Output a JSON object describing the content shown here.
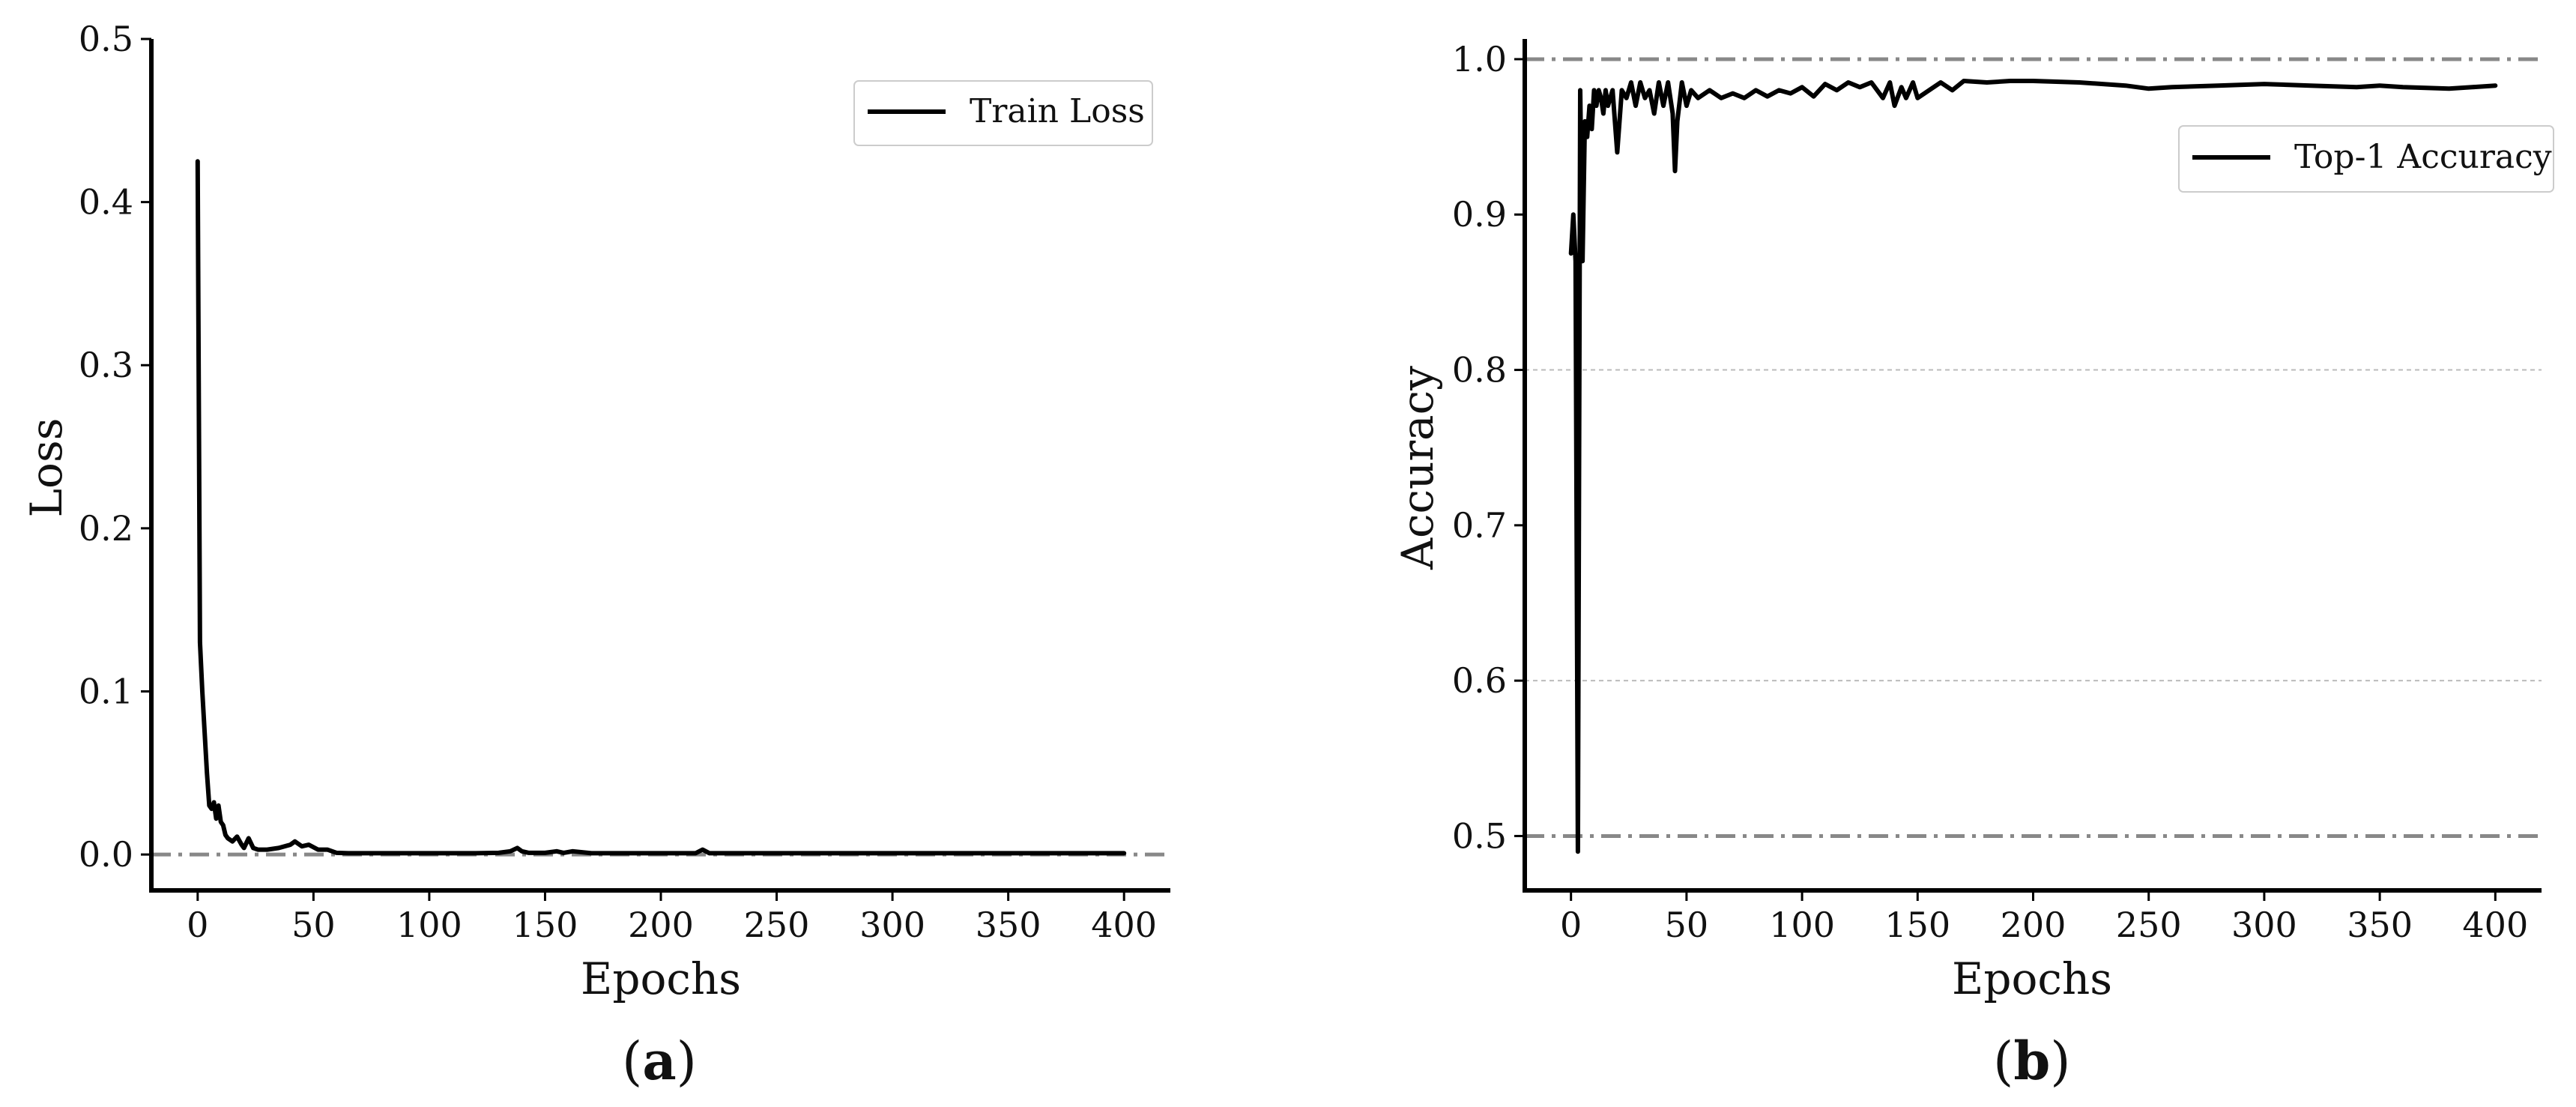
{
  "chart_data": [
    {
      "panel_label": {
        "open": "(",
        "letter": "a",
        "close": ")"
      },
      "type": "line",
      "xlabel": "Epochs",
      "ylabel": "Loss",
      "xlim": [
        -20,
        420
      ],
      "ylim": [
        -0.022,
        0.5
      ],
      "xticks": [
        0,
        50,
        100,
        150,
        200,
        250,
        300,
        350,
        400
      ],
      "yticks": [
        0.0,
        0.1,
        0.2,
        0.3,
        0.4,
        0.5
      ],
      "ytick_labels": [
        "0.0",
        "0.1",
        "0.2",
        "0.3",
        "0.4",
        "0.5"
      ],
      "grid": false,
      "reference_lines": [
        {
          "y": 0.0,
          "style": "dash-dot",
          "color": "#888888"
        }
      ],
      "legend_position": "top-right",
      "series": [
        {
          "name": "Train Loss",
          "color": "#000000",
          "x": [
            0,
            1,
            2,
            3,
            4,
            5,
            6,
            7,
            8,
            9,
            10,
            11,
            12,
            13,
            15,
            17,
            19,
            20,
            22,
            24,
            26,
            30,
            35,
            40,
            42,
            45,
            48,
            52,
            56,
            60,
            65,
            70,
            80,
            100,
            120,
            130,
            135,
            138,
            140,
            143,
            150,
            155,
            158,
            162,
            170,
            180,
            200,
            215,
            218,
            221,
            230,
            250,
            280,
            300,
            350,
            400
          ],
          "y": [
            0.425,
            0.13,
            0.1,
            0.075,
            0.05,
            0.03,
            0.028,
            0.032,
            0.022,
            0.03,
            0.02,
            0.018,
            0.012,
            0.01,
            0.008,
            0.011,
            0.006,
            0.004,
            0.01,
            0.004,
            0.003,
            0.003,
            0.004,
            0.006,
            0.008,
            0.005,
            0.006,
            0.003,
            0.003,
            0.001,
            0.0008,
            0.0008,
            0.0008,
            0.0008,
            0.0008,
            0.001,
            0.002,
            0.004,
            0.002,
            0.001,
            0.001,
            0.002,
            0.001,
            0.002,
            0.0008,
            0.0008,
            0.0008,
            0.0008,
            0.003,
            0.0008,
            0.0008,
            0.0008,
            0.0008,
            0.0008,
            0.0008,
            0.0008
          ]
        }
      ]
    },
    {
      "panel_label": {
        "open": "(",
        "letter": "b",
        "close": ")"
      },
      "type": "line",
      "xlabel": "Epochs",
      "ylabel": "Accuracy",
      "xlim": [
        -20,
        420
      ],
      "ylim": [
        0.465,
        1.013
      ],
      "xticks": [
        0,
        50,
        100,
        150,
        200,
        250,
        300,
        350,
        400
      ],
      "yticks": [
        0.5,
        0.6,
        0.7,
        0.8,
        0.9,
        1.0
      ],
      "ytick_labels": [
        "0.5",
        "0.6",
        "0.7",
        "0.8",
        "0.9",
        "1.0"
      ],
      "grid": true,
      "grid_lines": [
        0.6,
        0.8
      ],
      "reference_lines": [
        {
          "y": 1.0,
          "style": "dash-dot",
          "color": "#888888"
        },
        {
          "y": 0.5,
          "style": "dash-dot",
          "color": "#888888"
        }
      ],
      "legend_position": "top-right",
      "series": [
        {
          "name": "Top-1 Accuracy",
          "color": "#000000",
          "x": [
            0,
            1,
            2,
            3,
            4,
            5,
            6,
            7,
            8,
            9,
            10,
            11,
            12,
            13,
            14,
            15,
            16,
            18,
            20,
            22,
            24,
            26,
            28,
            30,
            32,
            34,
            36,
            38,
            40,
            42,
            44,
            45,
            46,
            48,
            50,
            52,
            55,
            60,
            65,
            70,
            75,
            80,
            85,
            90,
            95,
            100,
            105,
            110,
            115,
            120,
            125,
            130,
            135,
            138,
            140,
            143,
            145,
            148,
            150,
            155,
            160,
            165,
            170,
            180,
            190,
            200,
            220,
            240,
            250,
            260,
            280,
            300,
            320,
            340,
            350,
            360,
            380,
            390,
            400
          ],
          "y": [
            0.875,
            0.9,
            0.87,
            0.49,
            0.98,
            0.87,
            0.96,
            0.95,
            0.97,
            0.955,
            0.98,
            0.97,
            0.98,
            0.975,
            0.965,
            0.98,
            0.97,
            0.98,
            0.94,
            0.98,
            0.975,
            0.985,
            0.97,
            0.985,
            0.975,
            0.98,
            0.965,
            0.985,
            0.97,
            0.985,
            0.965,
            0.928,
            0.96,
            0.985,
            0.97,
            0.98,
            0.975,
            0.98,
            0.975,
            0.978,
            0.975,
            0.98,
            0.976,
            0.98,
            0.978,
            0.982,
            0.976,
            0.984,
            0.98,
            0.985,
            0.982,
            0.985,
            0.975,
            0.985,
            0.97,
            0.982,
            0.975,
            0.985,
            0.975,
            0.98,
            0.985,
            0.98,
            0.986,
            0.985,
            0.986,
            0.986,
            0.985,
            0.983,
            0.981,
            0.982,
            0.983,
            0.984,
            0.983,
            0.982,
            0.983,
            0.982,
            0.981,
            0.982,
            0.983
          ]
        }
      ]
    }
  ]
}
